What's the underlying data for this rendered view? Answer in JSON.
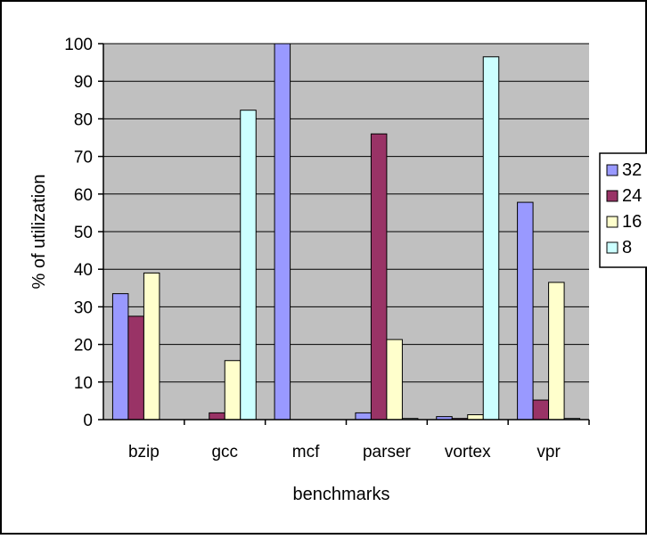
{
  "chart_data": {
    "type": "bar",
    "title": "",
    "xlabel": "benchmarks",
    "ylabel": "% of utilization",
    "ylim": [
      0,
      100
    ],
    "yticks": [
      0,
      10,
      20,
      30,
      40,
      50,
      60,
      70,
      80,
      90,
      100
    ],
    "grid": true,
    "legend_position": "right",
    "categories": [
      "bzip",
      "gcc",
      "mcf",
      "parser",
      "vortex",
      "vpr"
    ],
    "series": [
      {
        "name": "32",
        "color": "#9999ff",
        "values": [
          33.5,
          0,
          100,
          1.8,
          0.8,
          57.8
        ]
      },
      {
        "name": "24",
        "color": "#993366",
        "values": [
          27.5,
          1.8,
          0,
          76,
          0.3,
          5.2
        ]
      },
      {
        "name": "16",
        "color": "#ffffcc",
        "values": [
          39,
          15.7,
          0,
          21.3,
          1.3,
          36.5
        ]
      },
      {
        "name": "8",
        "color": "#ccffff",
        "values": [
          0,
          82.3,
          0,
          0.3,
          96.5,
          0.3
        ]
      }
    ],
    "plot_background": "#c0c0c0",
    "bar_outline": "#000000"
  }
}
